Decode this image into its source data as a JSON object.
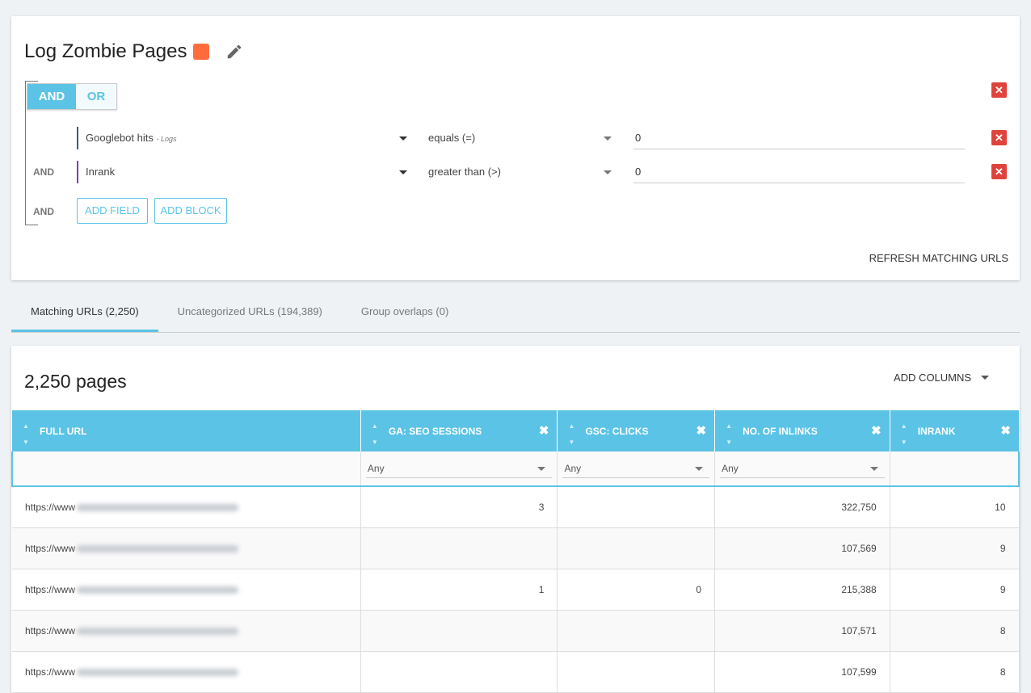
{
  "segment": {
    "title": "Log Zombie Pages",
    "color": "#ff6b3d",
    "logic": {
      "and": "AND",
      "or": "OR",
      "selected": "AND"
    },
    "conditions": [
      {
        "conj": "",
        "field": "Googlebot hits",
        "source": "- Logs",
        "operator": "equals (=)",
        "value": "0",
        "field_color": "#3a5f7a"
      },
      {
        "conj": "AND",
        "field": "Inrank",
        "source": "",
        "operator": "greater than (>)",
        "value": "0",
        "field_color": "#7b3fbf"
      }
    ],
    "add_conj": "AND",
    "add_field": "ADD FIELD",
    "add_block": "ADD BLOCK",
    "refresh": "REFRESH MATCHING URLS"
  },
  "tabs": [
    {
      "label": "Matching URLs (2,250)",
      "active": true
    },
    {
      "label": "Uncategorized URLs (194,389)"
    },
    {
      "label": "Group overlaps (0)"
    }
  ],
  "table": {
    "count": "2,250 pages",
    "add_columns": "ADD COLUMNS",
    "columns": [
      "FULL URL",
      "GA: SEO SESSIONS",
      "GSC: CLICKS",
      "NO. OF INLINKS",
      "INRANK"
    ],
    "filter": "Any",
    "rows": [
      {
        "url": "https://www",
        "ga": "3",
        "gsc": "",
        "inlinks": "322,750",
        "inrank": "10"
      },
      {
        "url": "https://www",
        "ga": "",
        "gsc": "",
        "inlinks": "107,569",
        "inrank": "9"
      },
      {
        "url": "https://www",
        "ga": "1",
        "gsc": "0",
        "inlinks": "215,388",
        "inrank": "9"
      },
      {
        "url": "https://www",
        "ga": "",
        "gsc": "",
        "inlinks": "107,571",
        "inrank": "8"
      },
      {
        "url": "https://www",
        "ga": "",
        "gsc": "",
        "inlinks": "107,599",
        "inrank": "8"
      }
    ]
  },
  "colors": {
    "accent": "#5bc3e6",
    "danger": "#e0433b"
  }
}
